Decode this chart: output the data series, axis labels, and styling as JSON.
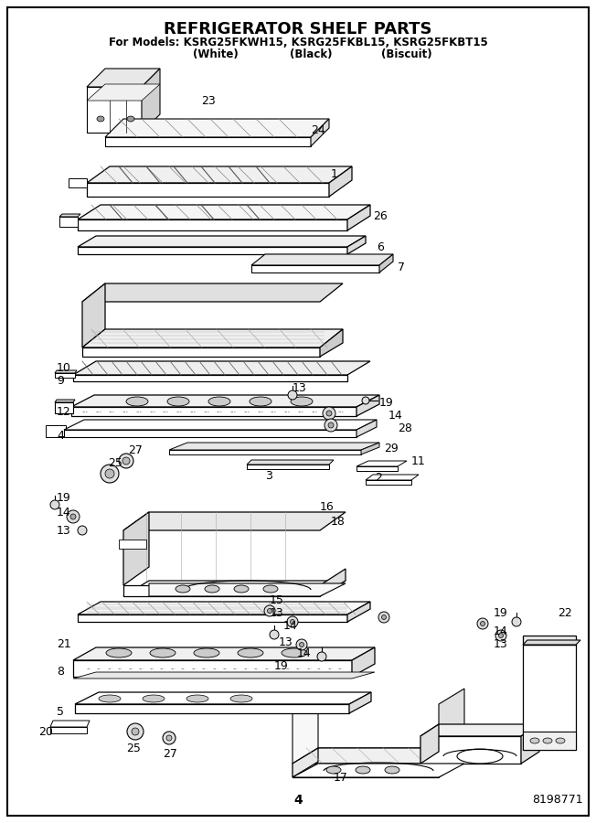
{
  "title": "REFRIGERATOR SHELF PARTS",
  "subtitle_line1": "For Models: KSRG25FKWH15, KSRG25FKBL15, KSRG25FKBT15",
  "subtitle_line2_parts": [
    "(White)",
    "(Black)",
    "(Biscuit)"
  ],
  "page_number": "4",
  "doc_number": "8198771",
  "background_color": "#ffffff",
  "title_fontsize": 13,
  "subtitle_fontsize": 9,
  "label_fontsize": 9,
  "border_color": "#000000",
  "text_color": "#000000"
}
